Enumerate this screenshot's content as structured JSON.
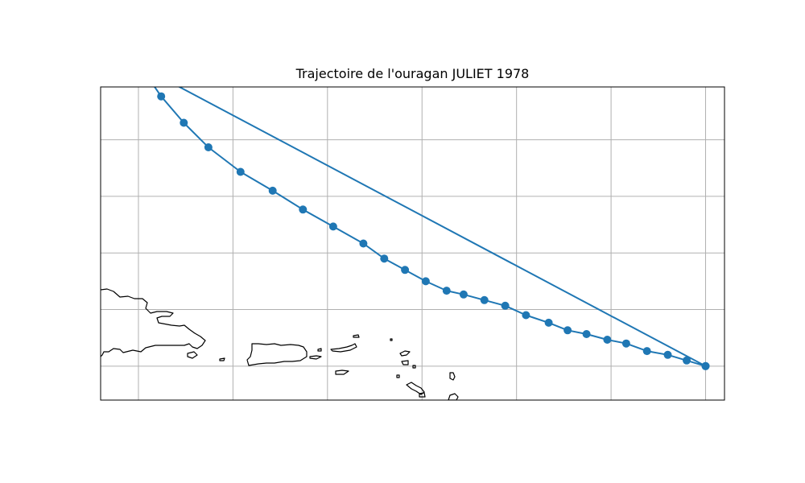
{
  "title": "Trajectoire de l'ouragan JULIET 1978",
  "map": {
    "projection": "PlateCarree",
    "extent_lon": [
      -72,
      -39
    ],
    "extent_lat": [
      15.7,
      32.3
    ],
    "gridlines": {
      "shown": true,
      "lon": [
        -70,
        -65,
        -60,
        -55,
        -50,
        -45,
        -40
      ],
      "lat": [
        17.5,
        20.5,
        23.5,
        26.5,
        29.5
      ]
    },
    "coastline_color": "#000000",
    "grid_color": "#b0b0b0"
  },
  "chart_data": {
    "type": "line",
    "title": "Trajectoire de l'ouragan JULIET 1978",
    "xlabel": "",
    "ylabel": "",
    "marker": "circle",
    "color": "#1f77b4",
    "grid": true,
    "track": {
      "lon": [
        -40.0,
        -41.0,
        -42.0,
        -43.1,
        -44.2,
        -45.2,
        -46.3,
        -47.3,
        -48.3,
        -49.5,
        -50.6,
        -51.7,
        -52.8,
        -53.7,
        -54.8,
        -55.9,
        -57.0,
        -58.1,
        -59.7,
        -61.3,
        -62.9,
        -64.6,
        -66.3,
        -67.6,
        -68.8,
        -69.9,
        -40.0
      ],
      "lat": [
        17.5,
        17.8,
        18.1,
        18.3,
        18.7,
        18.9,
        19.2,
        19.4,
        19.8,
        20.2,
        20.7,
        21.0,
        21.3,
        21.5,
        22.0,
        22.6,
        23.2,
        24.0,
        24.9,
        25.8,
        26.8,
        27.8,
        29.1,
        30.4,
        31.8,
        33.4,
        17.5
      ]
    }
  }
}
